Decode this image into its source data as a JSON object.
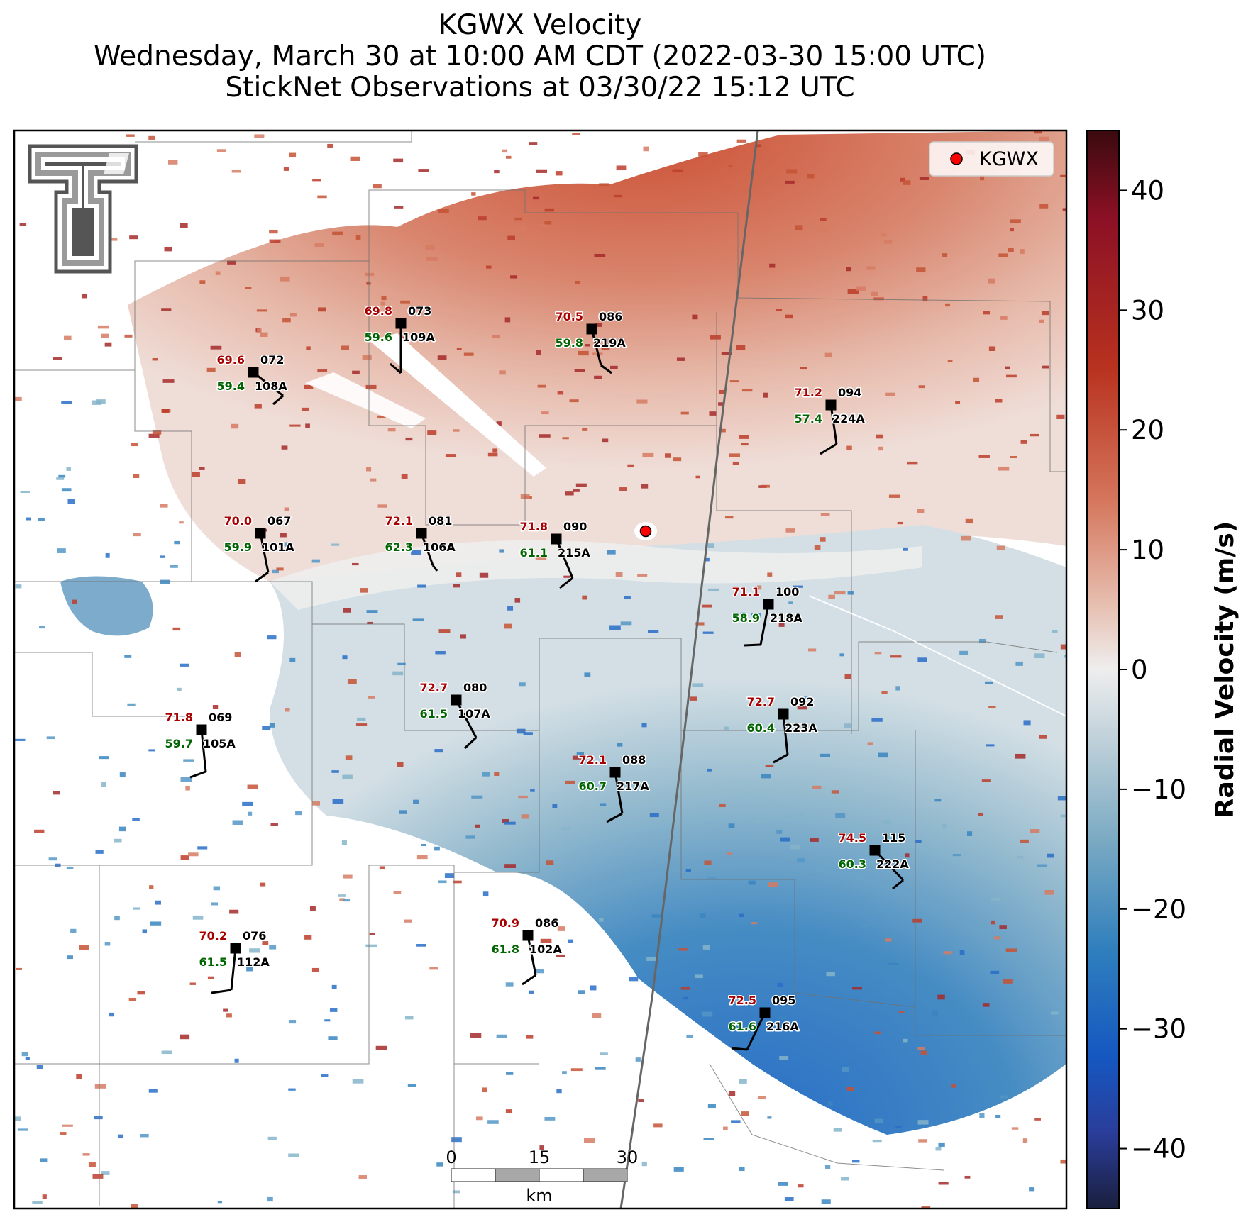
{
  "title": {
    "line1": "KGWX Velocity",
    "line2": "Wednesday, March 30 at 10:00 AM CDT (2022-03-30 15:00 UTC)",
    "line3": "StickNet Observations at 03/30/22 15:12 UTC"
  },
  "legend": {
    "label": "KGWX",
    "marker_color": "#ff0000"
  },
  "colorbar": {
    "label": "Radial Velocity (m/s)",
    "range": [
      -45,
      45
    ],
    "ticks": [
      "40",
      "30",
      "20",
      "10",
      "0",
      "−10",
      "−20",
      "−30",
      "−40"
    ],
    "colors": [
      "#1a1f3d",
      "#2a3d9a",
      "#1d66c4",
      "#3a86c4",
      "#7fb0c8",
      "#c6d6de",
      "#eeeeee",
      "#e8c2b4",
      "#d9876a",
      "#c24a2a",
      "#a01f1f",
      "#8b1025",
      "#3a0a0e"
    ]
  },
  "scale_bar": {
    "labels": [
      "0",
      "15",
      "30"
    ],
    "unit": "km"
  },
  "stations": [
    {
      "id": "109A",
      "temp": "69.8",
      "dew": "59.6",
      "dir": "073"
    },
    {
      "id": "219A",
      "temp": "70.5",
      "dew": "59.8",
      "dir": "086"
    },
    {
      "id": "108A",
      "temp": "69.6",
      "dew": "59.4",
      "dir": "072"
    },
    {
      "id": "224A",
      "temp": "71.2",
      "dew": "57.4",
      "dir": "094"
    },
    {
      "id": "101A",
      "temp": "70.0",
      "dew": "59.9",
      "dir": "067"
    },
    {
      "id": "106A",
      "temp": "72.1",
      "dew": "62.3",
      "dir": "081"
    },
    {
      "id": "215A",
      "temp": "71.8",
      "dew": "61.1",
      "dir": "090"
    },
    {
      "id": "218A",
      "temp": "71.1",
      "dew": "58.9",
      "dir": "100"
    },
    {
      "id": "107A",
      "temp": "72.7",
      "dew": "61.5",
      "dir": "080"
    },
    {
      "id": "223A",
      "temp": "72.7",
      "dew": "60.4",
      "dir": "092"
    },
    {
      "id": "105A",
      "temp": "71.8",
      "dew": "59.7",
      "dir": "069"
    },
    {
      "id": "217A",
      "temp": "72.1",
      "dew": "60.7",
      "dir": "088"
    },
    {
      "id": "222A",
      "temp": "74.5",
      "dew": "60.3",
      "dir": "115"
    },
    {
      "id": "102A",
      "temp": "70.9",
      "dew": "61.8",
      "dir": "086"
    },
    {
      "id": "112A",
      "temp": "70.2",
      "dew": "61.5",
      "dir": "076"
    },
    {
      "id": "216A",
      "temp": "72.5",
      "dew": "61.6",
      "dir": "095"
    }
  ]
}
